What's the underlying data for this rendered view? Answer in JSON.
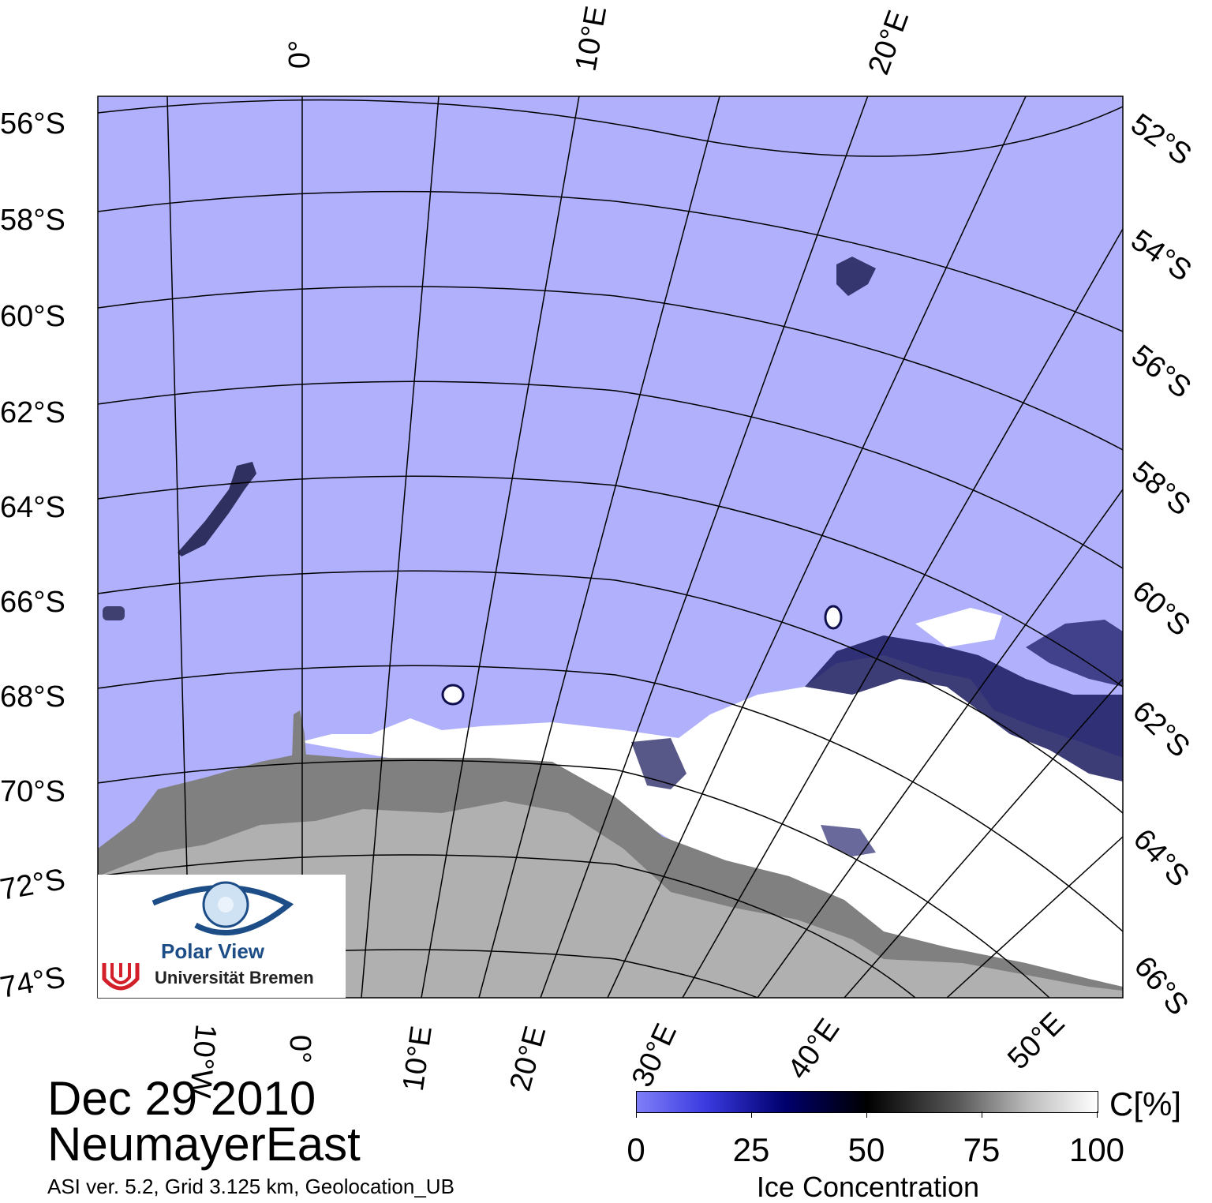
{
  "date": "Dec 29 2010",
  "region": "NeumayerEast",
  "info": "ASI ver. 5.2,  Grid 3.125 km, Geolocation_UB",
  "colorbar": {
    "ticks": [
      "0",
      "25",
      "50",
      "75",
      "100"
    ],
    "unit": "C[%]",
    "title": "Ice Concentration",
    "colors": [
      "#7f7ff8",
      "#00006e",
      "#000000",
      "#bcbcbc",
      "#ffffff"
    ]
  },
  "logo": {
    "title": "Polar View",
    "institution": "Universität Bremen"
  },
  "labels": {
    "lat_left": [
      "56°S",
      "58°S",
      "60°S",
      "62°S",
      "64°S",
      "66°S",
      "68°S",
      "70°S",
      "72°S",
      "74°S"
    ],
    "lat_right": [
      "52°S",
      "54°S",
      "56°S",
      "58°S",
      "60°S",
      "62°S",
      "64°S",
      "66°S"
    ],
    "lon_top": [
      "0°",
      "10°E",
      "20°E"
    ],
    "lon_bottom": [
      "10°W",
      "0°",
      "10°E",
      "20°E",
      "30°E",
      "40°E",
      "50°E"
    ]
  },
  "map_colors": {
    "ocean": "#b0b0fc",
    "land": "#b0b0b0",
    "ice_shelf": "#808080",
    "sea_ice": "#ffffff",
    "grid": "#000000"
  }
}
